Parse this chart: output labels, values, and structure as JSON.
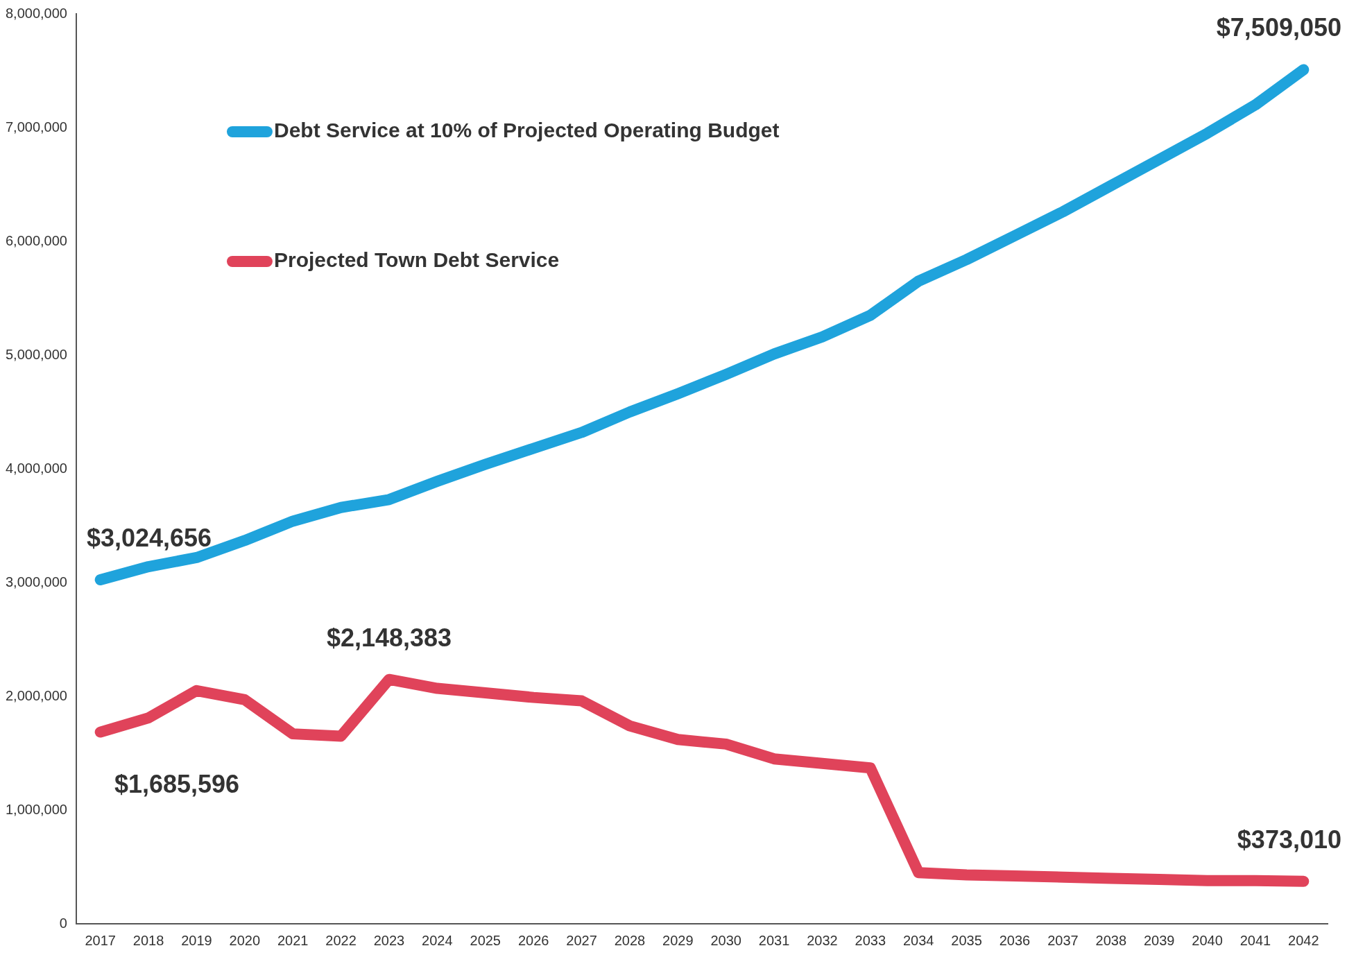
{
  "chart_data": {
    "type": "line",
    "categories": [
      "2017",
      "2018",
      "2019",
      "2020",
      "2021",
      "2022",
      "2023",
      "2024",
      "2025",
      "2026",
      "2027",
      "2028",
      "2029",
      "2030",
      "2031",
      "2032",
      "2033",
      "2034",
      "2035",
      "2036",
      "2037",
      "2038",
      "2039",
      "2040",
      "2041",
      "2042"
    ],
    "series": [
      {
        "name": "Debt Service at 10% of Projected Operating Budget",
        "color": "#1fa3dc",
        "values": [
          3024656,
          3140000,
          3220000,
          3370000,
          3540000,
          3660000,
          3730000,
          3890000,
          4040000,
          4180000,
          4320000,
          4500000,
          4660000,
          4830000,
          5010000,
          5160000,
          5350000,
          5650000,
          5840000,
          6050000,
          6260000,
          6490000,
          6720000,
          6950000,
          7200000,
          7509050
        ]
      },
      {
        "name": "Projected Town Debt Service",
        "color": "#e0435a",
        "values": [
          1685596,
          1810000,
          2050000,
          1970000,
          1670000,
          1650000,
          2148383,
          2070000,
          2030000,
          1990000,
          1960000,
          1740000,
          1620000,
          1580000,
          1450000,
          1410000,
          1370000,
          450000,
          430000,
          420000,
          410000,
          400000,
          390000,
          380000,
          380000,
          373010
        ]
      }
    ],
    "ylim": [
      0,
      8000000
    ],
    "yticks": [
      {
        "value": 0,
        "label": "0"
      },
      {
        "value": 1000000,
        "label": "1,000,000"
      },
      {
        "value": 2000000,
        "label": "2,000,000"
      },
      {
        "value": 3000000,
        "label": "3,000,000"
      },
      {
        "value": 4000000,
        "label": "4,000,000"
      },
      {
        "value": 5000000,
        "label": "5,000,000"
      },
      {
        "value": 6000000,
        "label": "6,000,000"
      },
      {
        "value": 7000000,
        "label": "7,000,000"
      },
      {
        "value": 8000000,
        "label": "8,000,000"
      }
    ],
    "grid": false,
    "legend": "top left",
    "marker": "none",
    "line_style": "solid",
    "annotations": [
      {
        "text": "$3,024,656",
        "x": "2017",
        "y": 3024656
      },
      {
        "text": "$1,685,596",
        "x": "2017",
        "y": 1685596
      },
      {
        "text": "$2,148,383",
        "x": "2023",
        "y": 2148383
      },
      {
        "text": "$7,509,050",
        "x": "2042",
        "y": 7509050
      },
      {
        "text": "$373,010",
        "x": "2042",
        "y": 373010
      }
    ]
  }
}
